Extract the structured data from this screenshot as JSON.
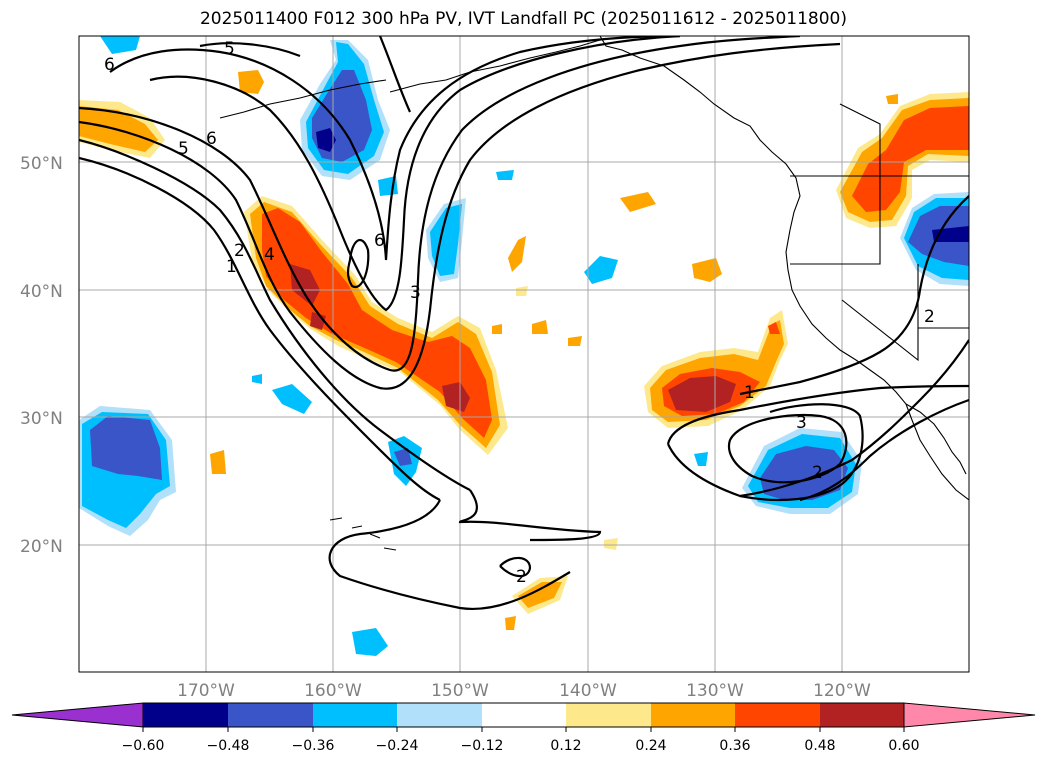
{
  "title": "2025011400 F012 300 hPa PV, IVT Landfall PC (2025011612 - 2025011800)",
  "lat_labels": [
    "50°N",
    "40°N",
    "30°N",
    "20°N"
  ],
  "lon_labels": [
    "170°W",
    "160°W",
    "150°W",
    "140°W",
    "130°W",
    "120°W"
  ],
  "colorbar": {
    "tick_labels": [
      "−0.60",
      "−0.48",
      "−0.36",
      "−0.24",
      "−0.12",
      "0.12",
      "0.24",
      "0.36",
      "0.48",
      "0.60"
    ],
    "colors": [
      "#9b30d0",
      "#00008b",
      "#3a55c8",
      "#00bfff",
      "#b0e0fa",
      "#ffffff",
      "#fde98c",
      "#ffa500",
      "#ff4500",
      "#b22222",
      "#ff88aa"
    ]
  },
  "contour_labels": [
    "5",
    "6",
    "6",
    "5",
    "2",
    "4",
    "1",
    "6",
    "3",
    "1",
    "3",
    "2",
    "2",
    "2"
  ],
  "colors": {
    "strong_neg": "#00008b",
    "mid_neg": "#3a55c8",
    "neg": "#00bfff",
    "weak_neg": "#b0e0fa",
    "weak_pos": "#fde98c",
    "pos": "#ffa500",
    "mid_pos": "#ff4500",
    "strong_pos": "#b22222"
  }
}
